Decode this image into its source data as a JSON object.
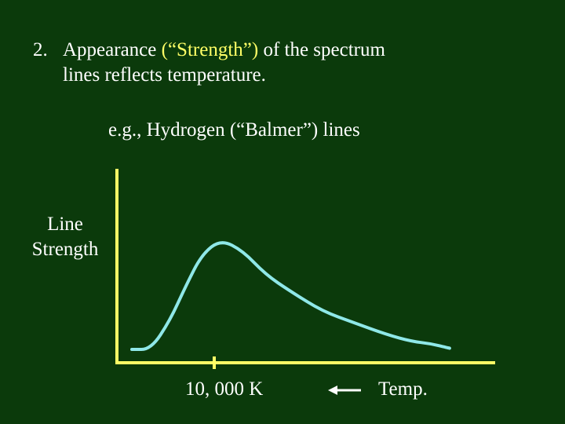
{
  "heading": {
    "number": "2.",
    "text_before": "Appearance ",
    "text_highlight": "(“Strength”)",
    "text_after": " of the spectrum",
    "line2": "lines reflects temperature."
  },
  "example": "e.g., Hydrogen (“Balmer”) lines",
  "axes": {
    "ylabel_line1": "Line",
    "ylabel_line2": "Strength",
    "xtick_label": "10, 000 K",
    "xlabel": "Temp.",
    "x_direction": "decreasing-to-left"
  },
  "colors": {
    "background": "#0b3a0b",
    "text": "#ffffff",
    "highlight": "#ffff66",
    "axes": "#ffff66",
    "curve": "#8fe8e8"
  },
  "chart_data": {
    "type": "line",
    "title": "",
    "xlabel": "Temp.",
    "ylabel": "Line Strength",
    "x_tick": "10, 000 K",
    "x": [
      0,
      0.06,
      0.12,
      0.17,
      0.22,
      0.28,
      0.35,
      0.42,
      0.5,
      0.6,
      0.7,
      0.8,
      0.88,
      0.94,
      1.0
    ],
    "y": [
      0.05,
      0.05,
      0.3,
      0.6,
      0.87,
      1.0,
      0.9,
      0.7,
      0.55,
      0.38,
      0.28,
      0.18,
      0.12,
      0.1,
      0.06
    ],
    "xlim": [
      0,
      1
    ],
    "ylim": [
      0,
      1.2
    ],
    "grid": false,
    "legend": "none"
  }
}
